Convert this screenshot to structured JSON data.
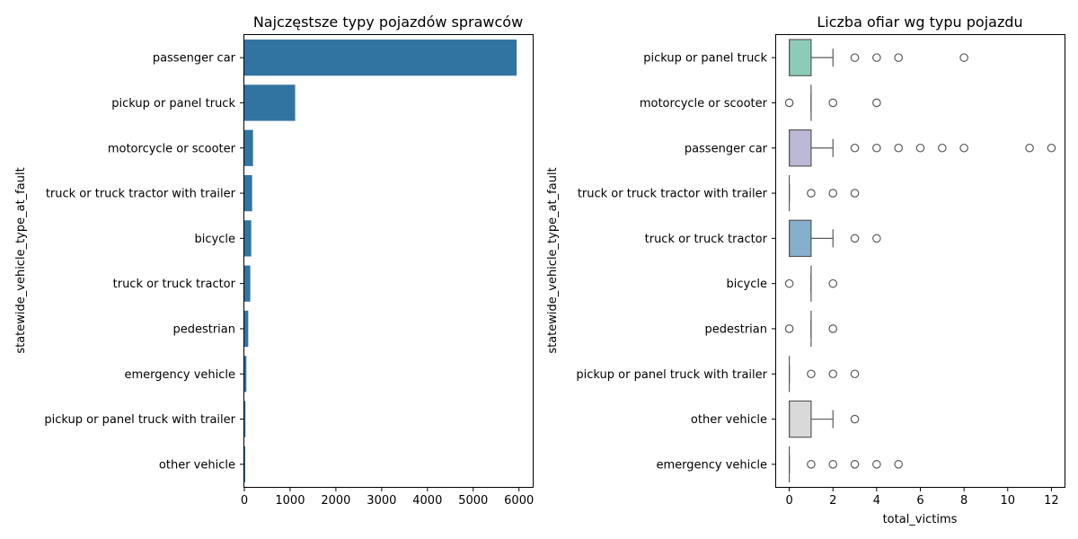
{
  "chart_data": [
    {
      "type": "bar",
      "orientation": "horizontal",
      "title": "Najczęstsze typy pojazdów sprawców",
      "ylabel": "statewide_vehicle_type_at_fault",
      "xlabel": "",
      "xlim": [
        0,
        6300
      ],
      "xticks": [
        "0",
        "1000",
        "2000",
        "3000",
        "4000",
        "5000",
        "6000"
      ],
      "bar_color": "#3274a1",
      "categories": [
        "passenger car",
        "pickup or panel truck",
        "motorcycle or scooter",
        "truck or truck tractor with trailer",
        "bicycle",
        "truck or truck tractor",
        "pedestrian",
        "emergency vehicle",
        "pickup or panel truck with trailer",
        "other vehicle"
      ],
      "values": [
        5950,
        1110,
        190,
        170,
        150,
        130,
        85,
        45,
        25,
        20
      ]
    },
    {
      "type": "boxplot",
      "orientation": "horizontal",
      "title": "Liczba ofiar wg typu pojazdu",
      "ylabel": "statewide_vehicle_type_at_fault",
      "xlabel": "total_victims",
      "xlim": [
        -0.6,
        12.6
      ],
      "xticks": [
        "0",
        "2",
        "4",
        "6",
        "8",
        "10",
        "12"
      ],
      "categories": [
        "pickup or panel truck",
        "motorcycle or scooter",
        "passenger car",
        "truck or truck tractor with trailer",
        "truck or truck tractor",
        "bicycle",
        "pedestrian",
        "pickup or panel truck with trailer",
        "other vehicle",
        "emergency vehicle"
      ],
      "boxes": [
        {
          "q1": 0,
          "median": 0,
          "q3": 1,
          "whisker_low": 0,
          "whisker_high": 2,
          "outliers": [
            3,
            4,
            5,
            8
          ],
          "color": "#8dcbb9"
        },
        {
          "q1": 1,
          "median": 1,
          "q3": 1,
          "whisker_low": 1,
          "whisker_high": 1,
          "outliers": [
            0,
            2,
            4
          ],
          "color": "#f2f2b0"
        },
        {
          "q1": 0,
          "median": 0,
          "q3": 1,
          "whisker_low": 0,
          "whisker_high": 2,
          "outliers": [
            3,
            4,
            5,
            6,
            7,
            8,
            11,
            12
          ],
          "color": "#bcb9d6"
        },
        {
          "q1": 0,
          "median": 0,
          "q3": 0,
          "whisker_low": 0,
          "whisker_high": 0,
          "outliers": [
            1,
            2,
            3
          ],
          "color": "#e9796b"
        },
        {
          "q1": 0,
          "median": 0,
          "q3": 1,
          "whisker_low": 0,
          "whisker_high": 2,
          "outliers": [
            3,
            4
          ],
          "color": "#86afcc"
        },
        {
          "q1": 1,
          "median": 1,
          "q3": 1,
          "whisker_low": 1,
          "whisker_high": 1,
          "outliers": [
            0,
            2
          ],
          "color": "#f0b06b"
        },
        {
          "q1": 1,
          "median": 1,
          "q3": 1,
          "whisker_low": 1,
          "whisker_high": 1,
          "outliers": [
            0,
            2
          ],
          "color": "#b6d77a"
        },
        {
          "q1": 0,
          "median": 0,
          "q3": 0,
          "whisker_low": 0,
          "whisker_high": 0,
          "outliers": [
            1,
            2,
            3
          ],
          "color": "#f5c9dd"
        },
        {
          "q1": 0,
          "median": 0,
          "q3": 1,
          "whisker_low": 0,
          "whisker_high": 2,
          "outliers": [
            3
          ],
          "color": "#d9d9d9"
        },
        {
          "q1": 0,
          "median": 0,
          "q3": 0,
          "whisker_low": 0,
          "whisker_high": 0,
          "outliers": [
            1,
            2,
            3,
            4,
            5
          ],
          "color": "#b985bb"
        }
      ]
    }
  ]
}
